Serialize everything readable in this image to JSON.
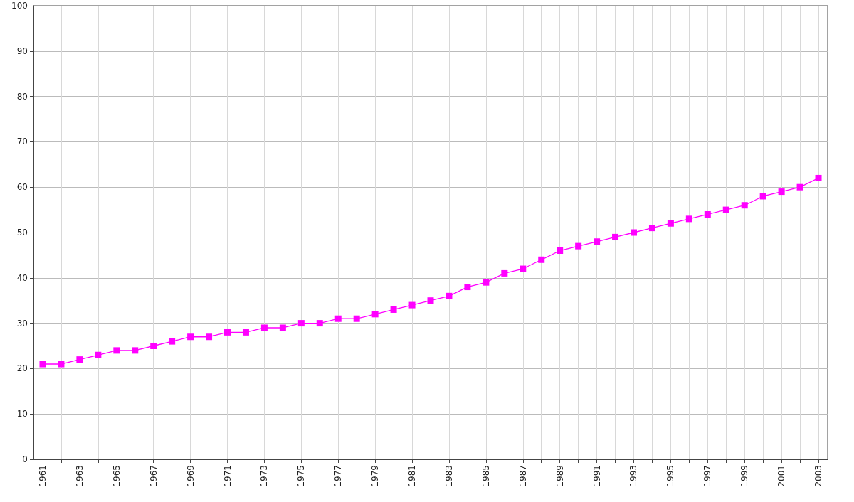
{
  "chart_data": {
    "type": "line",
    "x": [
      1961,
      1962,
      1963,
      1964,
      1965,
      1966,
      1967,
      1968,
      1969,
      1970,
      1971,
      1972,
      1973,
      1974,
      1975,
      1976,
      1977,
      1978,
      1979,
      1980,
      1981,
      1982,
      1983,
      1984,
      1985,
      1986,
      1987,
      1988,
      1989,
      1990,
      1991,
      1992,
      1993,
      1994,
      1995,
      1996,
      1997,
      1998,
      1999,
      2000,
      2001,
      2002,
      2003
    ],
    "series": [
      {
        "color": "#ff00ff",
        "values": [
          21,
          21,
          22,
          23,
          24,
          24,
          25,
          26,
          27,
          27,
          28,
          28,
          29,
          29,
          30,
          30,
          31,
          31,
          32,
          33,
          34,
          35,
          36,
          38,
          39,
          41,
          42,
          44,
          46,
          47,
          48,
          49,
          50,
          51,
          52,
          53,
          54,
          55,
          56,
          58,
          59,
          60,
          62
        ]
      }
    ],
    "xlim": [
      1960.5,
      2003.5
    ],
    "xticks": [
      1961,
      {
        "value": 1962,
        "label": null
      },
      1963,
      {
        "value": 1964,
        "label": null
      },
      1965,
      {
        "value": 1966,
        "label": null
      },
      1967,
      {
        "value": 1968,
        "label": null
      },
      1969,
      {
        "value": 1970,
        "label": null
      },
      1971,
      {
        "value": 1972,
        "label": null
      },
      1973,
      {
        "value": 1974,
        "label": null
      },
      1975,
      {
        "value": 1976,
        "label": null
      },
      1977,
      {
        "value": 1978,
        "label": null
      },
      1979,
      {
        "value": 1980,
        "label": null
      },
      1981,
      {
        "value": 1982,
        "label": null
      },
      1983,
      {
        "value": 1984,
        "label": null
      },
      1985,
      {
        "value": 1986,
        "label": null
      },
      1987,
      {
        "value": 1988,
        "label": null
      },
      1989,
      {
        "value": 1990,
        "label": null
      },
      1991,
      {
        "value": 1992,
        "label": null
      },
      1993,
      {
        "value": 1994,
        "label": null
      },
      1995,
      {
        "value": 1996,
        "label": null
      },
      1997,
      {
        "value": 1998,
        "label": null
      },
      1999,
      {
        "value": 2000,
        "label": null
      },
      2001,
      {
        "value": 2002,
        "label": null
      },
      2003
    ],
    "ylim": [
      0,
      100
    ],
    "yticks": [
      0,
      10,
      20,
      30,
      40,
      50,
      60,
      70,
      80,
      90,
      100
    ],
    "grid": true,
    "marker": "square",
    "line_style": "solid"
  }
}
